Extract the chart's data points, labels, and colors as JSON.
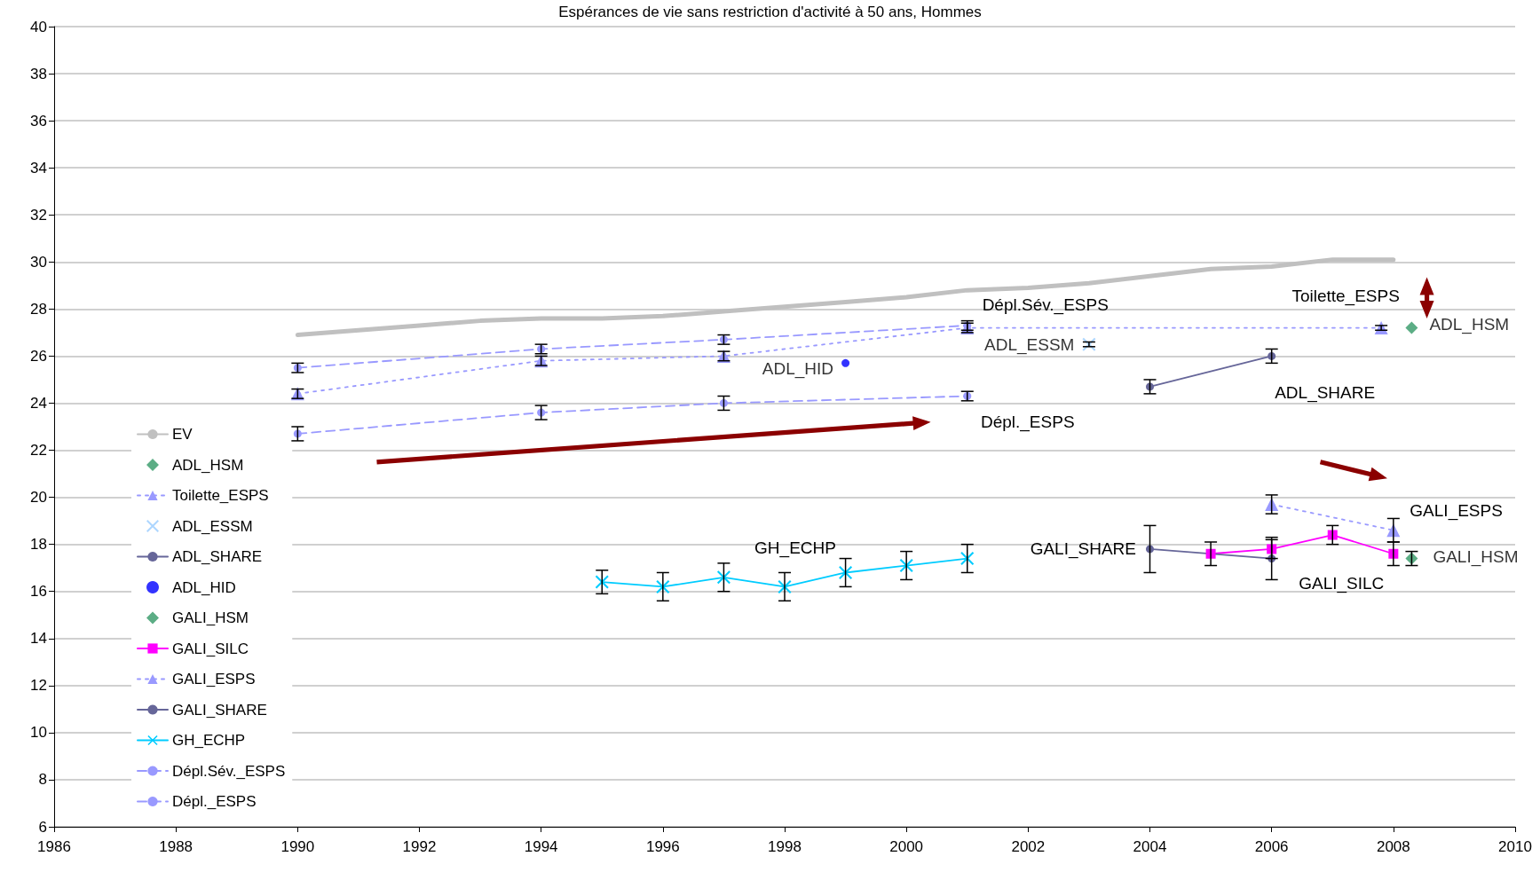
{
  "chart_data": {
    "type": "line",
    "title": "Espérances de vie sans restriction d'activité à 50 ans, Hommes",
    "xlim": [
      1986,
      2010
    ],
    "xticks": [
      1986,
      1988,
      1990,
      1992,
      1994,
      1996,
      1998,
      2000,
      2002,
      2004,
      2006,
      2008,
      2010
    ],
    "ylim": [
      6,
      40
    ],
    "yticks": [
      6,
      8,
      10,
      12,
      14,
      16,
      18,
      20,
      22,
      24,
      26,
      28,
      30,
      32,
      34,
      36,
      38,
      40
    ],
    "grid": "y",
    "legend": "bottom left",
    "series": [
      {
        "name": "EV",
        "color": "#c0c0c0",
        "marker": "none",
        "line_style": "solid",
        "x": [
          1990,
          1991,
          1992,
          1993,
          1994,
          1995,
          1996,
          1997,
          1998,
          1999,
          2000,
          2001,
          2002,
          2003,
          2004,
          2005,
          2006,
          2007,
          2008
        ],
        "values": [
          26.9,
          27.1,
          27.3,
          27.5,
          27.6,
          27.6,
          27.7,
          27.9,
          28.1,
          28.3,
          28.5,
          28.8,
          28.9,
          29.1,
          29.4,
          29.7,
          29.8,
          30.1,
          30.1
        ]
      },
      {
        "name": "ADL_HSM",
        "type": "scatter",
        "color": "#339966",
        "marker": "diamond",
        "x": [
          2008.3
        ],
        "values": [
          27.2
        ]
      },
      {
        "name": "Toilette_ESPS",
        "color": "#9999ff",
        "marker": "triangle",
        "line_style": "dotted",
        "x": [
          1990,
          1994,
          1997,
          2001,
          2007.8
        ],
        "values": [
          24.4,
          25.8,
          26.0,
          27.2,
          27.2
        ],
        "errors": [
          0.2,
          0.2,
          0.2,
          0.2,
          0.1
        ]
      },
      {
        "name": "ADL_ESSM",
        "type": "scatter",
        "color": "#99ccff",
        "marker": "cross",
        "x": [
          2003
        ],
        "values": [
          26.5
        ],
        "errors": [
          0.1
        ]
      },
      {
        "name": "ADL_SHARE",
        "color": "#666699",
        "marker": "circle",
        "line_style": "solid",
        "x": [
          2004,
          2006
        ],
        "values": [
          24.7,
          26.0
        ],
        "errors": [
          0.3,
          0.3
        ]
      },
      {
        "name": "ADL_HID",
        "type": "scatter",
        "color": "#0000ff",
        "marker": "circle",
        "x": [
          1999
        ],
        "values": [
          25.7
        ]
      },
      {
        "name": "GALI_HSM",
        "type": "scatter",
        "color": "#339966",
        "marker": "diamond",
        "x": [
          2008.3
        ],
        "values": [
          17.4
        ],
        "errors": [
          0.3
        ]
      },
      {
        "name": "GALI_SILC",
        "color": "#ff00ff",
        "marker": "square",
        "line_style": "solid",
        "x": [
          2005,
          2006,
          2007,
          2008
        ],
        "values": [
          17.6,
          17.8,
          18.4,
          17.6
        ],
        "errors": [
          0.5,
          0.4,
          0.4,
          0.5
        ]
      },
      {
        "name": "GALI_ESPS",
        "color": "#9999ff",
        "marker": "triangle",
        "line_style": "dotted",
        "x": [
          2006,
          2008
        ],
        "values": [
          19.7,
          18.6
        ],
        "errors": [
          0.4,
          0.5
        ]
      },
      {
        "name": "GALI_SHARE",
        "color": "#666699",
        "marker": "circle",
        "line_style": "solid",
        "x": [
          2004,
          2006
        ],
        "values": [
          17.8,
          17.4
        ],
        "errors": [
          1.0,
          0.9
        ]
      },
      {
        "name": "GH_ECHP",
        "color": "#00ccff",
        "marker": "cross",
        "line_style": "solid",
        "x": [
          1995,
          1996,
          1997,
          1998,
          1999,
          2000,
          2001
        ],
        "values": [
          16.4,
          16.2,
          16.6,
          16.2,
          16.8,
          17.1,
          17.4
        ],
        "errors": [
          0.5,
          0.6,
          0.6,
          0.6,
          0.6,
          0.6,
          0.6
        ]
      },
      {
        "name": "Dépl.Sév._ESPS",
        "color": "#9999ff",
        "marker": "circle",
        "line_style": "dashed",
        "x": [
          1990,
          1994,
          1997,
          2001
        ],
        "values": [
          25.5,
          26.3,
          26.7,
          27.3
        ],
        "errors": [
          0.2,
          0.2,
          0.2,
          0.2
        ]
      },
      {
        "name": "Dépl._ESPS",
        "color": "#9999ff",
        "marker": "circle",
        "line_style": "dashed",
        "x": [
          1990,
          1994,
          1997,
          2001
        ],
        "values": [
          22.7,
          23.6,
          24.0,
          24.3
        ],
        "errors": [
          0.3,
          0.3,
          0.3,
          0.2
        ]
      }
    ]
  }
}
